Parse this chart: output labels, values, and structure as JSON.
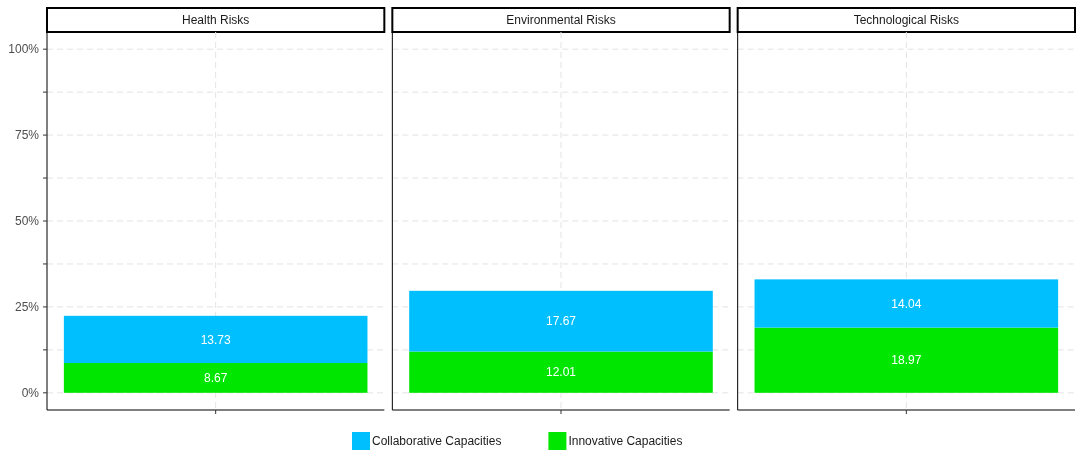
{
  "chart_data": {
    "type": "bar",
    "categories": [
      "Health Risks",
      "Environmental Risks",
      "Technological Risks"
    ],
    "stacked": true,
    "data_labels": true,
    "ylim": [
      -5,
      105
    ],
    "yticks": [
      {
        "value": 0,
        "label": "0%"
      },
      {
        "value": 12.5,
        "label": null
      },
      {
        "value": 25,
        "label": "25%"
      },
      {
        "value": 37.5,
        "label": null
      },
      {
        "value": 50,
        "label": "50%"
      },
      {
        "value": 62.5,
        "label": null
      },
      {
        "value": 75,
        "label": "75%"
      },
      {
        "value": 87.5,
        "label": null
      },
      {
        "value": 100,
        "label": "100%"
      }
    ],
    "grid": true,
    "legend": "bottom",
    "series": [
      {
        "name": "Innovative Capacities",
        "color": "#00e600",
        "values": [
          8.67,
          12.01,
          18.97
        ]
      },
      {
        "name": "Collaborative Capacities",
        "color": "#00bfff",
        "values": [
          13.73,
          17.67,
          14.04
        ]
      }
    ]
  }
}
